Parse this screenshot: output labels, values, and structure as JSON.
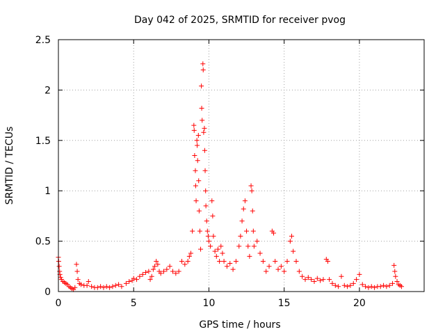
{
  "chart_data": {
    "type": "scatter",
    "title": "Day 042 of 2025, SRMTID for receiver pvog",
    "xlabel": "GPS time / hours",
    "ylabel": "SRMTID / TECUs",
    "xlim": [
      0,
      24.3
    ],
    "ylim": [
      0,
      2.5
    ],
    "xticks": [
      0,
      5,
      10,
      15,
      20
    ],
    "xtick_labels": [
      "0",
      "5",
      "10",
      "15",
      "20"
    ],
    "yticks": [
      0,
      0.5,
      1,
      1.5,
      2,
      2.5
    ],
    "ytick_labels": [
      "0",
      "0.5",
      "1",
      "1.5",
      "2",
      "2.5"
    ],
    "grid": true,
    "marker": "+",
    "color": "#ff0000",
    "series": [
      {
        "name": "SRMTID",
        "points": [
          [
            0.0,
            0.34
          ],
          [
            0.02,
            0.3
          ],
          [
            0.05,
            0.25
          ],
          [
            0.08,
            0.2
          ],
          [
            0.1,
            0.17
          ],
          [
            0.15,
            0.14
          ],
          [
            0.2,
            0.12
          ],
          [
            0.3,
            0.1
          ],
          [
            0.4,
            0.09
          ],
          [
            0.5,
            0.08
          ],
          [
            0.6,
            0.07
          ],
          [
            0.7,
            0.05
          ],
          [
            0.8,
            0.04
          ],
          [
            0.9,
            0.03
          ],
          [
            1.0,
            0.02
          ],
          [
            1.1,
            0.04
          ],
          [
            1.2,
            0.27
          ],
          [
            1.25,
            0.2
          ],
          [
            1.3,
            0.12
          ],
          [
            1.4,
            0.08
          ],
          [
            1.5,
            0.07
          ],
          [
            1.7,
            0.06
          ],
          [
            1.9,
            0.06
          ],
          [
            2.0,
            0.1
          ],
          [
            2.2,
            0.05
          ],
          [
            2.4,
            0.04
          ],
          [
            2.6,
            0.04
          ],
          [
            2.8,
            0.05
          ],
          [
            3.0,
            0.04
          ],
          [
            3.2,
            0.05
          ],
          [
            3.4,
            0.04
          ],
          [
            3.6,
            0.05
          ],
          [
            3.8,
            0.06
          ],
          [
            4.0,
            0.07
          ],
          [
            4.2,
            0.05
          ],
          [
            4.5,
            0.08
          ],
          [
            4.7,
            0.1
          ],
          [
            4.9,
            0.11
          ],
          [
            5.0,
            0.13
          ],
          [
            5.2,
            0.12
          ],
          [
            5.4,
            0.15
          ],
          [
            5.6,
            0.17
          ],
          [
            5.8,
            0.19
          ],
          [
            6.0,
            0.2
          ],
          [
            6.1,
            0.12
          ],
          [
            6.2,
            0.15
          ],
          [
            6.3,
            0.22
          ],
          [
            6.4,
            0.25
          ],
          [
            6.5,
            0.3
          ],
          [
            6.6,
            0.27
          ],
          [
            6.7,
            0.2
          ],
          [
            6.8,
            0.18
          ],
          [
            7.0,
            0.2
          ],
          [
            7.2,
            0.22
          ],
          [
            7.4,
            0.25
          ],
          [
            7.6,
            0.2
          ],
          [
            7.8,
            0.18
          ],
          [
            8.0,
            0.2
          ],
          [
            8.2,
            0.3
          ],
          [
            8.4,
            0.27
          ],
          [
            8.6,
            0.3
          ],
          [
            8.7,
            0.35
          ],
          [
            8.8,
            0.38
          ],
          [
            8.9,
            0.6
          ],
          [
            9.0,
            1.65
          ],
          [
            9.02,
            1.6
          ],
          [
            9.05,
            1.35
          ],
          [
            9.1,
            1.2
          ],
          [
            9.12,
            1.05
          ],
          [
            9.15,
            0.9
          ],
          [
            9.2,
            1.5
          ],
          [
            9.22,
            1.45
          ],
          [
            9.25,
            1.3
          ],
          [
            9.3,
            1.55
          ],
          [
            9.32,
            1.1
          ],
          [
            9.35,
            0.8
          ],
          [
            9.4,
            0.6
          ],
          [
            9.45,
            0.42
          ],
          [
            9.5,
            2.04
          ],
          [
            9.52,
            1.82
          ],
          [
            9.55,
            1.7
          ],
          [
            9.6,
            2.26
          ],
          [
            9.62,
            2.2
          ],
          [
            9.65,
            1.58
          ],
          [
            9.7,
            1.62
          ],
          [
            9.72,
            1.4
          ],
          [
            9.75,
            1.2
          ],
          [
            9.78,
            1.0
          ],
          [
            9.8,
            0.85
          ],
          [
            9.85,
            0.7
          ],
          [
            9.9,
            0.6
          ],
          [
            9.95,
            0.55
          ],
          [
            10.0,
            0.5
          ],
          [
            10.1,
            0.45
          ],
          [
            10.2,
            0.9
          ],
          [
            10.25,
            0.75
          ],
          [
            10.3,
            0.55
          ],
          [
            10.4,
            0.4
          ],
          [
            10.5,
            0.35
          ],
          [
            10.6,
            0.42
          ],
          [
            10.7,
            0.3
          ],
          [
            10.8,
            0.45
          ],
          [
            10.9,
            0.38
          ],
          [
            11.0,
            0.3
          ],
          [
            11.2,
            0.25
          ],
          [
            11.4,
            0.28
          ],
          [
            11.6,
            0.22
          ],
          [
            11.8,
            0.3
          ],
          [
            12.0,
            0.45
          ],
          [
            12.1,
            0.55
          ],
          [
            12.2,
            0.7
          ],
          [
            12.3,
            0.82
          ],
          [
            12.4,
            0.9
          ],
          [
            12.5,
            0.6
          ],
          [
            12.6,
            0.45
          ],
          [
            12.7,
            0.35
          ],
          [
            12.8,
            1.05
          ],
          [
            12.85,
            1.0
          ],
          [
            12.9,
            0.8
          ],
          [
            12.95,
            0.6
          ],
          [
            13.0,
            0.45
          ],
          [
            13.2,
            0.5
          ],
          [
            13.4,
            0.38
          ],
          [
            13.6,
            0.3
          ],
          [
            13.8,
            0.2
          ],
          [
            14.0,
            0.25
          ],
          [
            14.2,
            0.6
          ],
          [
            14.3,
            0.58
          ],
          [
            14.4,
            0.3
          ],
          [
            14.6,
            0.22
          ],
          [
            14.8,
            0.25
          ],
          [
            15.0,
            0.2
          ],
          [
            15.2,
            0.3
          ],
          [
            15.4,
            0.5
          ],
          [
            15.5,
            0.55
          ],
          [
            15.6,
            0.4
          ],
          [
            15.8,
            0.3
          ],
          [
            16.0,
            0.2
          ],
          [
            16.2,
            0.15
          ],
          [
            16.4,
            0.12
          ],
          [
            16.6,
            0.14
          ],
          [
            16.8,
            0.12
          ],
          [
            17.0,
            0.1
          ],
          [
            17.2,
            0.13
          ],
          [
            17.4,
            0.11
          ],
          [
            17.6,
            0.12
          ],
          [
            17.8,
            0.32
          ],
          [
            17.9,
            0.3
          ],
          [
            18.0,
            0.12
          ],
          [
            18.2,
            0.08
          ],
          [
            18.4,
            0.06
          ],
          [
            18.6,
            0.05
          ],
          [
            18.8,
            0.15
          ],
          [
            19.0,
            0.06
          ],
          [
            19.2,
            0.05
          ],
          [
            19.4,
            0.06
          ],
          [
            19.6,
            0.08
          ],
          [
            19.8,
            0.12
          ],
          [
            20.0,
            0.17
          ],
          [
            20.2,
            0.07
          ],
          [
            20.4,
            0.05
          ],
          [
            20.6,
            0.04
          ],
          [
            20.8,
            0.05
          ],
          [
            21.0,
            0.04
          ],
          [
            21.2,
            0.05
          ],
          [
            21.4,
            0.05
          ],
          [
            21.6,
            0.06
          ],
          [
            21.8,
            0.05
          ],
          [
            22.0,
            0.06
          ],
          [
            22.2,
            0.08
          ],
          [
            22.3,
            0.26
          ],
          [
            22.35,
            0.2
          ],
          [
            22.4,
            0.15
          ],
          [
            22.5,
            0.1
          ],
          [
            22.6,
            0.07
          ],
          [
            22.7,
            0.06
          ],
          [
            22.8,
            0.05
          ]
        ]
      }
    ]
  }
}
